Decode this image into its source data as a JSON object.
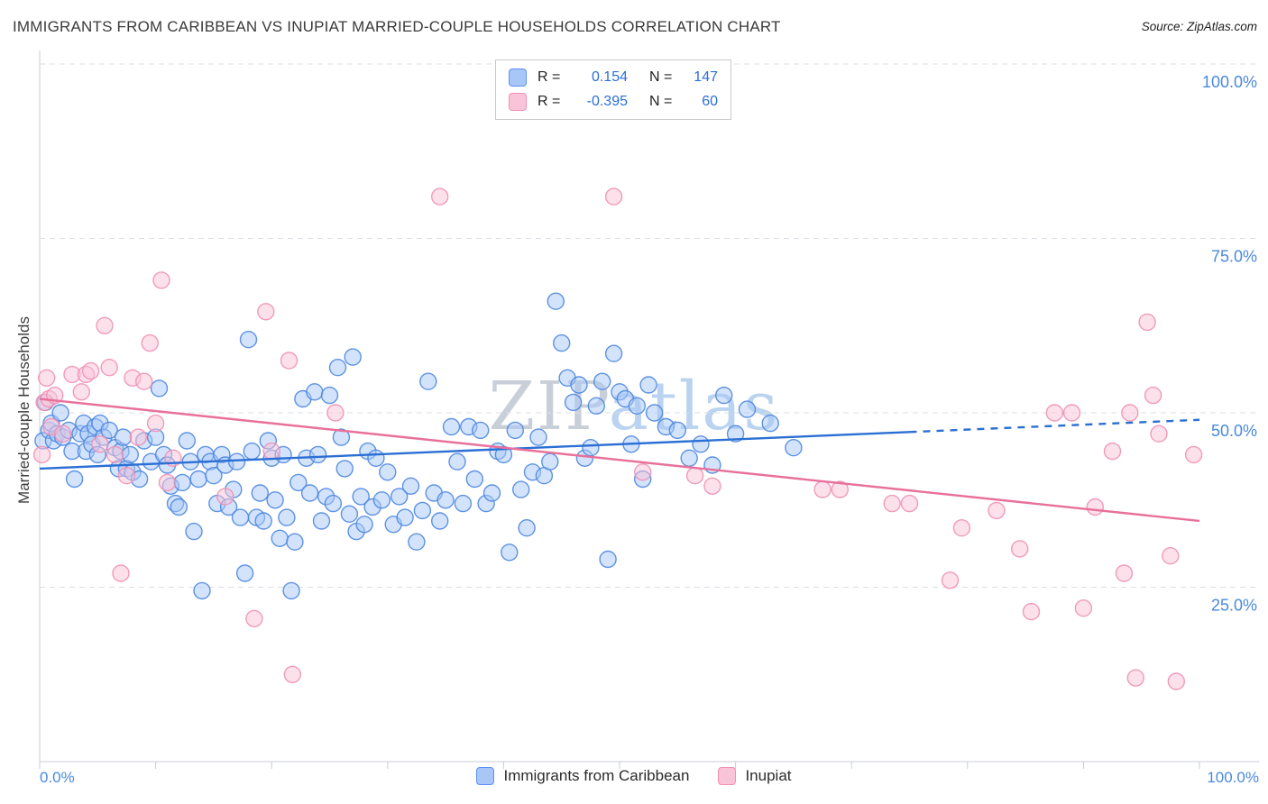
{
  "header": {
    "title": "IMMIGRANTS FROM CARIBBEAN VS INUPIAT MARRIED-COUPLE HOUSEHOLDS CORRELATION CHART",
    "source": "Source: ZipAtlas.com"
  },
  "watermark": {
    "zip": "ZIP",
    "atlas": "atlas"
  },
  "correlation_box": {
    "rows": [
      {
        "r_label": "R =",
        "r_value": "0.154",
        "n_label": "N =",
        "n_value": "147"
      },
      {
        "r_label": "R =",
        "r_value": "-0.395",
        "n_label": "N =",
        "n_value": "60"
      }
    ]
  },
  "chart_data": {
    "type": "scatter",
    "title": "IMMIGRANTS FROM CARIBBEAN VS INUPIAT MARRIED-COUPLE HOUSEHOLDS CORRELATION CHART",
    "xlabel": "",
    "ylabel": "Married-couple Households",
    "x_range": [
      0,
      100
    ],
    "y_range": [
      0,
      100
    ],
    "grid": "horizontal-dashed",
    "legend_position": "bottom-center",
    "axis_label_color": "#4a89dc",
    "x_tick_labels": [
      "0.0%",
      "100.0%"
    ],
    "x_tick_values": [
      0,
      10,
      20,
      30,
      40,
      50,
      60,
      70,
      80,
      90,
      100
    ],
    "y_ticks": [
      {
        "value": 100,
        "label": "100.0%"
      },
      {
        "value": 75,
        "label": "75.0%"
      },
      {
        "value": 50,
        "label": "50.0%"
      },
      {
        "value": 25,
        "label": "25.0%"
      }
    ],
    "series": [
      {
        "name": "Immigrants from Caribbean",
        "R": 0.154,
        "N": 147,
        "fill": "#a8c7f7",
        "stroke": "#4e87e0",
        "points": [
          [
            0.3,
            46
          ],
          [
            0.5,
            51.5
          ],
          [
            0.8,
            47.5
          ],
          [
            1,
            48.5
          ],
          [
            1.2,
            46
          ],
          [
            1.5,
            47
          ],
          [
            1.8,
            50
          ],
          [
            2,
            46.5
          ],
          [
            2.5,
            47.5
          ],
          [
            2.8,
            44.5
          ],
          [
            3,
            40.5
          ],
          [
            3.5,
            47
          ],
          [
            3.8,
            48.5
          ],
          [
            4,
            44.5
          ],
          [
            4.2,
            47
          ],
          [
            4.5,
            45.5
          ],
          [
            4.8,
            48
          ],
          [
            5,
            44
          ],
          [
            5.2,
            48.5
          ],
          [
            5.5,
            46.5
          ],
          [
            6,
            47.5
          ],
          [
            6.5,
            45
          ],
          [
            6.8,
            42
          ],
          [
            7,
            44.5
          ],
          [
            7.2,
            46.5
          ],
          [
            7.5,
            42
          ],
          [
            7.8,
            44
          ],
          [
            8,
            41.5
          ],
          [
            8.6,
            40.5
          ],
          [
            9,
            46
          ],
          [
            9.6,
            43
          ],
          [
            10,
            46.5
          ],
          [
            10.3,
            53.5
          ],
          [
            10.7,
            44
          ],
          [
            11,
            42.5
          ],
          [
            11.3,
            39.5
          ],
          [
            11.7,
            37
          ],
          [
            12,
            36.5
          ],
          [
            12.3,
            40
          ],
          [
            12.7,
            46
          ],
          [
            13,
            43
          ],
          [
            13.3,
            33
          ],
          [
            13.7,
            40.5
          ],
          [
            14,
            24.5
          ],
          [
            14.3,
            44
          ],
          [
            14.7,
            43
          ],
          [
            15,
            41
          ],
          [
            15.3,
            37
          ],
          [
            15.7,
            44
          ],
          [
            16,
            42.5
          ],
          [
            16.3,
            36.5
          ],
          [
            16.7,
            39
          ],
          [
            17,
            43
          ],
          [
            17.3,
            35
          ],
          [
            17.7,
            27
          ],
          [
            18,
            60.5
          ],
          [
            18.3,
            44.5
          ],
          [
            18.7,
            35
          ],
          [
            19,
            38.5
          ],
          [
            19.3,
            34.5
          ],
          [
            19.7,
            46
          ],
          [
            20,
            43.5
          ],
          [
            20.3,
            37.5
          ],
          [
            20.7,
            32
          ],
          [
            21,
            44
          ],
          [
            21.3,
            35
          ],
          [
            21.7,
            24.5
          ],
          [
            22,
            31.5
          ],
          [
            22.3,
            40
          ],
          [
            22.7,
            52
          ],
          [
            23,
            43.5
          ],
          [
            23.3,
            38.5
          ],
          [
            23.7,
            53
          ],
          [
            24,
            44
          ],
          [
            24.3,
            34.5
          ],
          [
            24.7,
            38
          ],
          [
            25,
            52.5
          ],
          [
            25.3,
            37
          ],
          [
            25.7,
            56.5
          ],
          [
            26,
            46.5
          ],
          [
            26.3,
            42
          ],
          [
            26.7,
            35.5
          ],
          [
            27,
            58
          ],
          [
            27.3,
            33
          ],
          [
            27.7,
            38
          ],
          [
            28,
            34
          ],
          [
            28.3,
            44.5
          ],
          [
            28.7,
            36.5
          ],
          [
            29,
            43.5
          ],
          [
            29.5,
            37.5
          ],
          [
            30,
            41.5
          ],
          [
            30.5,
            34
          ],
          [
            31,
            38
          ],
          [
            31.5,
            35
          ],
          [
            32,
            39.5
          ],
          [
            32.5,
            31.5
          ],
          [
            33,
            36
          ],
          [
            33.5,
            54.5
          ],
          [
            34,
            38.5
          ],
          [
            34.5,
            34.5
          ],
          [
            35,
            37.5
          ],
          [
            35.5,
            48
          ],
          [
            36,
            43
          ],
          [
            36.5,
            37
          ],
          [
            37,
            48
          ],
          [
            37.5,
            40.5
          ],
          [
            38,
            47.5
          ],
          [
            38.5,
            37
          ],
          [
            39,
            38.5
          ],
          [
            39.5,
            44.5
          ],
          [
            40,
            44
          ],
          [
            40.5,
            30
          ],
          [
            41,
            47.5
          ],
          [
            41.5,
            39
          ],
          [
            42,
            33.5
          ],
          [
            42.5,
            41.5
          ],
          [
            43,
            46.5
          ],
          [
            43.5,
            41
          ],
          [
            44,
            43
          ],
          [
            44.5,
            66
          ],
          [
            45,
            60
          ],
          [
            45.5,
            55
          ],
          [
            46,
            51.5
          ],
          [
            46.5,
            54
          ],
          [
            47,
            43.5
          ],
          [
            47.5,
            45
          ],
          [
            48,
            51
          ],
          [
            48.5,
            54.5
          ],
          [
            49,
            29
          ],
          [
            49.5,
            58.5
          ],
          [
            50,
            53
          ],
          [
            50.5,
            52
          ],
          [
            51,
            45.5
          ],
          [
            51.5,
            51
          ],
          [
            52,
            40.5
          ],
          [
            52.5,
            54
          ],
          [
            53,
            50
          ],
          [
            54,
            48
          ],
          [
            55,
            47.5
          ],
          [
            56,
            43.5
          ],
          [
            57,
            45.5
          ],
          [
            58,
            42.5
          ],
          [
            59,
            52.5
          ],
          [
            60,
            47
          ],
          [
            61,
            50.5
          ],
          [
            63,
            48.5
          ],
          [
            65,
            45
          ]
        ]
      },
      {
        "name": "Inupiat",
        "R": -0.395,
        "N": 60,
        "fill": "#fac4d8",
        "stroke": "#f090b4",
        "points": [
          [
            0.2,
            44
          ],
          [
            0.4,
            51.5
          ],
          [
            0.6,
            55
          ],
          [
            0.8,
            52
          ],
          [
            1,
            48
          ],
          [
            1.3,
            52.5
          ],
          [
            2,
            47
          ],
          [
            2.8,
            55.5
          ],
          [
            3.6,
            53
          ],
          [
            4,
            55.5
          ],
          [
            4.4,
            56
          ],
          [
            5.2,
            45.5
          ],
          [
            5.6,
            62.5
          ],
          [
            6,
            56.5
          ],
          [
            6.5,
            44
          ],
          [
            7,
            27
          ],
          [
            7.5,
            41
          ],
          [
            8,
            55
          ],
          [
            8.5,
            46.5
          ],
          [
            9,
            54.5
          ],
          [
            9.5,
            60
          ],
          [
            10,
            48.5
          ],
          [
            10.5,
            69
          ],
          [
            11,
            40
          ],
          [
            11.5,
            43.5
          ],
          [
            16,
            38
          ],
          [
            18.5,
            20.5
          ],
          [
            19.5,
            64.5
          ],
          [
            20,
            44.5
          ],
          [
            21.8,
            12.5
          ],
          [
            21.5,
            57.5
          ],
          [
            25.5,
            50
          ],
          [
            34.5,
            81
          ],
          [
            49.5,
            81
          ],
          [
            52,
            41.5
          ],
          [
            56.5,
            41
          ],
          [
            58,
            39.5
          ],
          [
            67.5,
            39
          ],
          [
            69,
            39
          ],
          [
            73.5,
            37
          ],
          [
            75,
            37
          ],
          [
            78.5,
            26
          ],
          [
            79.5,
            33.5
          ],
          [
            82.5,
            36
          ],
          [
            84.5,
            30.5
          ],
          [
            85.5,
            21.5
          ],
          [
            87.5,
            50
          ],
          [
            89,
            50
          ],
          [
            90,
            22
          ],
          [
            91,
            36.5
          ],
          [
            92.5,
            44.5
          ],
          [
            93.5,
            27
          ],
          [
            94,
            50
          ],
          [
            94.5,
            12
          ],
          [
            95.5,
            63
          ],
          [
            96,
            52.5
          ],
          [
            96.5,
            47
          ],
          [
            97.5,
            29.5
          ],
          [
            98,
            11.5
          ],
          [
            99.5,
            44
          ]
        ]
      }
    ],
    "trend_lines": [
      {
        "series": "Immigrants from Caribbean",
        "color": "#2b6fd4",
        "start": [
          0,
          42
        ],
        "end": [
          100,
          49
        ],
        "dash_from": 75
      },
      {
        "series": "Inupiat",
        "color": "#e8709a",
        "start": [
          0,
          52
        ],
        "end": [
          100,
          34.5
        ]
      }
    ]
  }
}
